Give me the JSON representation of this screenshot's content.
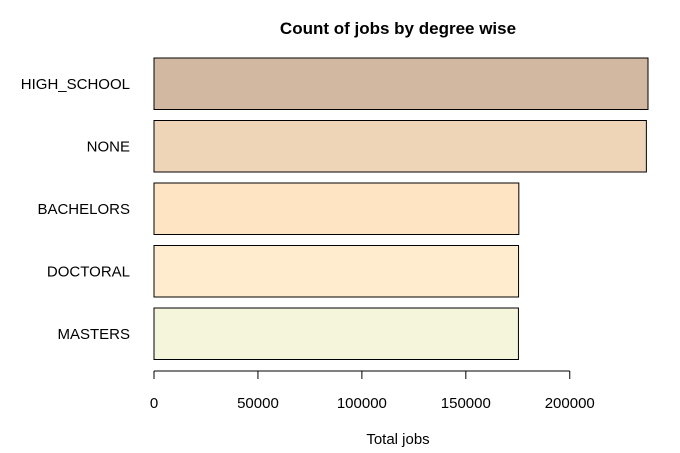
{
  "chart_data": {
    "type": "bar",
    "orientation": "horizontal",
    "title": "Count of jobs by degree wise",
    "xlabel": "Total jobs",
    "ylabel": "",
    "categories": [
      "HIGH_SCHOOL",
      "NONE",
      "BACHELORS",
      "DOCTORAL",
      "MASTERS"
    ],
    "values": [
      237634,
      236854,
      175495,
      175364,
      175311
    ],
    "colors": [
      "#D2B8A0",
      "#EFD5B8",
      "#FFE4C4",
      "#FFEBCD",
      "#F5F5DC"
    ],
    "xlim": [
      0,
      237634
    ],
    "xticks": [
      0,
      50000,
      100000,
      150000,
      200000
    ],
    "xtick_labels": [
      "0",
      "50000",
      "100000",
      "150000",
      "200000"
    ],
    "grid": false,
    "legend": "none"
  }
}
